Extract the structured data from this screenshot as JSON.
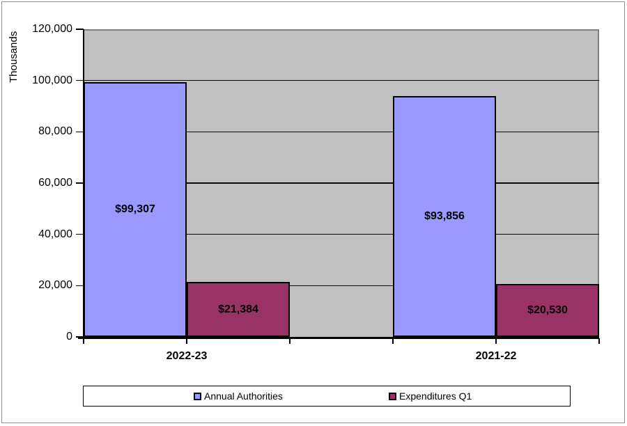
{
  "chart_data": {
    "type": "bar",
    "title": "",
    "xlabel": "",
    "ylabel": "Thousands",
    "categories": [
      "2022-23",
      "2021-22"
    ],
    "series": [
      {
        "name": "Annual Authorities",
        "color": "#9999FF",
        "values": [
          99307,
          93856
        ],
        "labels": [
          "$99,307",
          "$93,856"
        ]
      },
      {
        "name": "Expenditures Q1",
        "color": "#993366",
        "values": [
          21384,
          20530
        ],
        "labels": [
          "$21,384",
          "$20,530"
        ]
      }
    ],
    "ylim": [
      0,
      120000
    ],
    "y_tick_step": 20000,
    "y_ticks": [
      {
        "value": 0,
        "label": "0"
      },
      {
        "value": 20000,
        "label": "20,000"
      },
      {
        "value": 40000,
        "label": "40,000"
      },
      {
        "value": 60000,
        "label": "60,000"
      },
      {
        "value": 80000,
        "label": "80,000"
      },
      {
        "value": 100000,
        "label": "100,000"
      },
      {
        "value": 120000,
        "label": "120,000"
      }
    ],
    "grid": "major-horizontal",
    "legend_position": "bottom",
    "plot_bg": "#C0C0C0"
  }
}
